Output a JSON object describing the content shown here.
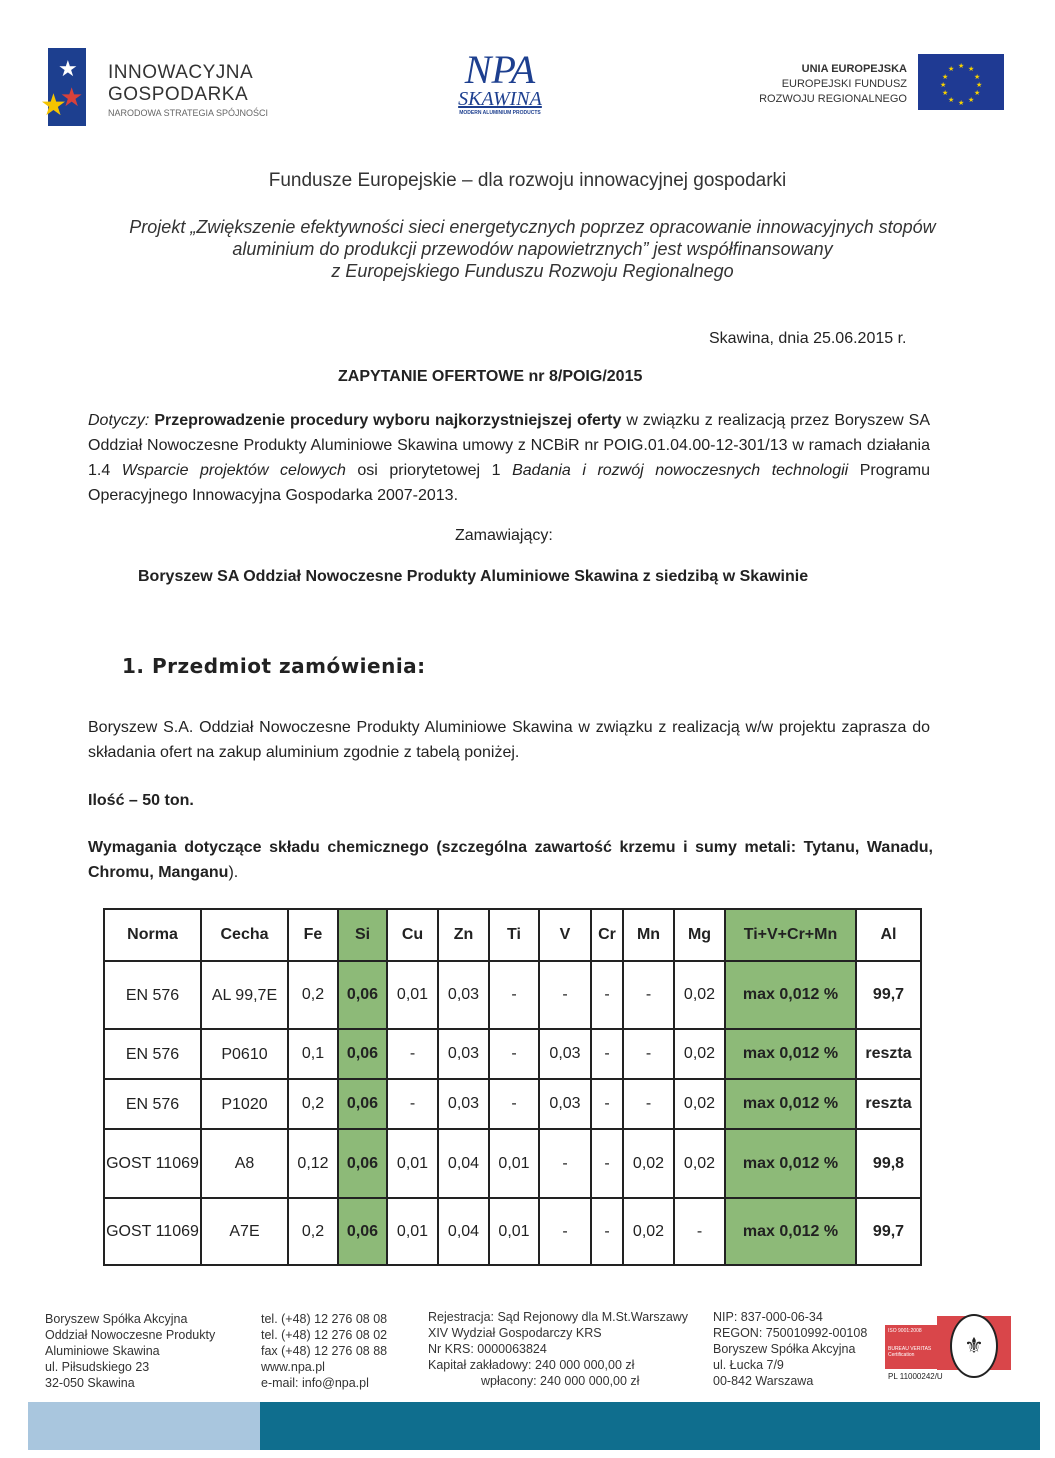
{
  "header": {
    "ig_logo": {
      "line1": "INNOWACYJNA",
      "line2": "GOSPODARKA",
      "line3": "NARODOWA STRATEGIA SPÓJNOŚCI"
    },
    "npa_logo": {
      "line1": "NPA",
      "line2": "SKAWINA",
      "line3": "MODERN ALUMINIUM PRODUCTS"
    },
    "eu_logo": {
      "line1": "UNIA EUROPEJSKA",
      "line2": "EUROPEJSKI FUNDUSZ",
      "line3": "ROZWOJU REGIONALNEGO"
    },
    "colors": {
      "eu_blue": "#1f3a93",
      "eu_yellow": "#f4d000"
    }
  },
  "slogan": "Fundusze Europejskie – dla rozwoju innowacyjnej gospodarki",
  "project": [
    "Projekt „Zwiększenie efektywności sieci energetycznych poprzez opracowanie innowacyjnych stopów",
    "aluminium do produkcji przewodów napowietrznych” jest współfinansowany",
    "z Europejskiego Funduszu Rozwoju Regionalnego"
  ],
  "place_date": "Skawina, dnia 25.06.2015 r.",
  "title": "ZAPYTANIE OFERTOWE nr 8/POIG/2015",
  "concerning": {
    "label": "Dotyczy:",
    "bold": "Przeprowadzenie procedury wyboru najkorzystniejszej oferty",
    "t1": " w związku z realizacją przez Boryszew SA Oddział Nowoczesne Produkty Aluminiowe Skawina umowy z NCBiR nr POIG.01.04.00-12-301/13 w ramach działania 1.4 ",
    "i1": "Wsparcie projektów celowych",
    "t2": " osi priorytetowej 1 ",
    "i2": "Badania i rozwój nowoczesnych technologii",
    "t3": " Programu Operacyjnego Innowacyjna Gospodarka 2007-2013."
  },
  "orderer_label": "Zamawiający:",
  "orderer": "Boryszew SA Oddział Nowoczesne Produkty Aluminiowe Skawina z siedzibą w Skawinie",
  "section1": {
    "heading": "1. Przedmiot zamówienia:",
    "intro": "Boryszew S.A. Oddział Nowoczesne Produkty Aluminiowe Skawina w związku z realizacją w/w projektu zaprasza do składania ofert na zakup aluminium zgodnie z tabelą poniżej.",
    "quantity": "Ilość – 50 ton.",
    "req_bold": "Wymagania dotyczące składu chemicznego (szczególna zawartość krzemu i sumy metali: Tytanu, Wanadu, Chromu, Manganu",
    "req_end": ")."
  },
  "table": {
    "headers": [
      "Norma",
      "Cecha",
      "Fe",
      "Si",
      "Cu",
      "Zn",
      "Ti",
      "V",
      "Cr",
      "Mn",
      "Mg",
      "Ti+V+Cr+Mn",
      "Al"
    ],
    "rows": [
      [
        "EN 576",
        "AL 99,7E",
        "0,2",
        "0,06",
        "0,01",
        "0,03",
        "-",
        "-",
        "-",
        "-",
        "0,02",
        "max 0,012 %",
        "99,7"
      ],
      [
        "EN 576",
        "P0610",
        "0,1",
        "0,06",
        "-",
        "0,03",
        "-",
        "0,03",
        "-",
        "-",
        "0,02",
        "max 0,012 %",
        "reszta"
      ],
      [
        "EN 576",
        "P1020",
        "0,2",
        "0,06",
        "-",
        "0,03",
        "-",
        "0,03",
        "-",
        "-",
        "0,02",
        "max 0,012 %",
        "reszta"
      ],
      [
        "GOST 11069",
        "A8",
        "0,12",
        "0,06",
        "0,01",
        "0,04",
        "0,01",
        "-",
        "-",
        "0,02",
        "0,02",
        "max 0,012 %",
        "99,8"
      ],
      [
        "GOST 11069",
        "A7E",
        "0,2",
        "0,06",
        "0,01",
        "0,04",
        "0,01",
        "-",
        "-",
        "0,02",
        "-",
        "max 0,012 %",
        "99,7"
      ]
    ],
    "highlight_color": "#8dba78"
  },
  "footer": {
    "col1": [
      "Boryszew Spółka Akcyjna",
      "Oddział Nowoczesne Produkty",
      "Aluminiowe Skawina",
      "ul. Piłsudskiego 23",
      "32-050 Skawina"
    ],
    "col2": [
      "tel. (+48) 12 276 08 08",
      "tel. (+48) 12 276 08 02",
      "fax (+48) 12 276 08 88",
      "www.npa.pl",
      "e-mail: info@npa.pl"
    ],
    "col3": [
      "Rejestracja: Sąd Rejonowy dla M.St.Warszawy",
      "XIV Wydział Gospodarczy KRS",
      "Nr KRS: 0000063824",
      "Kapitał zakładowy: 240 000 000,00 zł",
      "wpłacony: 240 000 000,00 zł"
    ],
    "col4": [
      "NIP: 837-000-06-34",
      "REGON: 750010992-00108",
      "Boryszew Spółka Akcyjna",
      "ul. Łucka 7/9",
      "00-842 Warszawa"
    ],
    "cert": {
      "line1": "ISO 9001:2008",
      "line2": "BUREAU VERITAS",
      "line3": "Certification",
      "number": "PL 11000242/U"
    },
    "bar_colors": [
      "#a9c6de",
      "#0f6e8e"
    ]
  }
}
